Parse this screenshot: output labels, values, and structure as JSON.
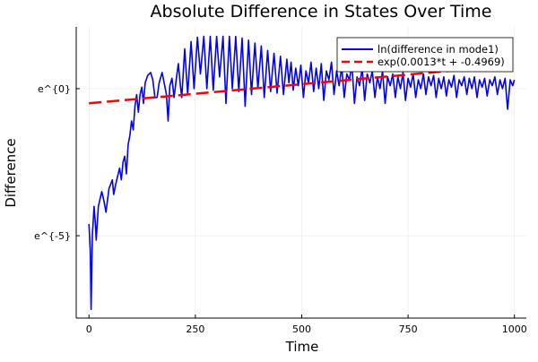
{
  "chart_data": {
    "type": "line",
    "title": "Absolute Difference in States Over Time",
    "xlabel": "Time",
    "ylabel": "Difference",
    "xlim": [
      -30,
      1028
    ],
    "ylim": [
      -7.8,
      2.1
    ],
    "y_scale": "log (natural, ticks shown as e^{k})",
    "grid": true,
    "legend_position": "top-right",
    "x_ticks": [
      {
        "value": 0,
        "label": "0"
      },
      {
        "value": 250,
        "label": "250"
      },
      {
        "value": 500,
        "label": "500"
      },
      {
        "value": 750,
        "label": "750"
      },
      {
        "value": 1000,
        "label": "1000"
      }
    ],
    "y_ticks": [
      {
        "value": 0,
        "label": "e^{0}"
      },
      {
        "value": -5,
        "label": "e^{-5}"
      }
    ],
    "series": [
      {
        "name": "ln(difference in mode1)",
        "color": "#0000ff",
        "style": "solid",
        "points": [
          [
            0,
            -4.6
          ],
          [
            3,
            -5.5
          ],
          [
            5,
            -7.5
          ],
          [
            8,
            -5.0
          ],
          [
            12,
            -4.0
          ],
          [
            15,
            -4.6
          ],
          [
            17,
            -5.15
          ],
          [
            22,
            -4.0
          ],
          [
            30,
            -3.5
          ],
          [
            35,
            -3.8
          ],
          [
            40,
            -4.2
          ],
          [
            47,
            -3.4
          ],
          [
            55,
            -3.1
          ],
          [
            58,
            -3.6
          ],
          [
            62,
            -3.3
          ],
          [
            67,
            -3.0
          ],
          [
            72,
            -2.7
          ],
          [
            76,
            -3.1
          ],
          [
            80,
            -2.5
          ],
          [
            84,
            -2.3
          ],
          [
            88,
            -2.9
          ],
          [
            92,
            -1.9
          ],
          [
            96,
            -1.6
          ],
          [
            100,
            -1.1
          ],
          [
            104,
            -1.4
          ],
          [
            108,
            -0.6
          ],
          [
            112,
            -0.2
          ],
          [
            116,
            -0.8
          ],
          [
            120,
            -0.2
          ],
          [
            124,
            0.05
          ],
          [
            128,
            -0.5
          ],
          [
            132,
            0.2
          ],
          [
            138,
            0.45
          ],
          [
            145,
            0.55
          ],
          [
            150,
            0.3
          ],
          [
            155,
            -0.3
          ],
          [
            160,
            -0.3
          ],
          [
            165,
            0.2
          ],
          [
            172,
            0.55
          ],
          [
            178,
            0.1
          ],
          [
            182,
            -0.2
          ],
          [
            186,
            -1.1
          ],
          [
            190,
            0.1
          ],
          [
            195,
            0.35
          ],
          [
            200,
            -0.3
          ],
          [
            205,
            0.3
          ],
          [
            210,
            0.85
          ],
          [
            215,
            0.1
          ],
          [
            218,
            -0.3
          ],
          [
            225,
            1.35
          ],
          [
            232,
            -0.2
          ],
          [
            240,
            1.6
          ],
          [
            247,
            0.0
          ],
          [
            255,
            1.75
          ],
          [
            262,
            0.5
          ],
          [
            270,
            1.78
          ],
          [
            277,
            0.0
          ],
          [
            285,
            1.78
          ],
          [
            292,
            -0.05
          ],
          [
            300,
            1.78
          ],
          [
            307,
            0.4
          ],
          [
            315,
            1.78
          ],
          [
            322,
            -0.5
          ],
          [
            330,
            1.78
          ],
          [
            337,
            0.0
          ],
          [
            345,
            1.77
          ],
          [
            352,
            -0.1
          ],
          [
            360,
            1.72
          ],
          [
            367,
            -0.6
          ],
          [
            375,
            1.65
          ],
          [
            382,
            -0.2
          ],
          [
            390,
            1.55
          ],
          [
            397,
            0.0
          ],
          [
            405,
            1.45
          ],
          [
            412,
            -0.3
          ],
          [
            420,
            1.3
          ],
          [
            427,
            -0.1
          ],
          [
            435,
            1.2
          ],
          [
            442,
            -0.15
          ],
          [
            450,
            1.1
          ],
          [
            457,
            -0.2
          ],
          [
            465,
            1.0
          ],
          [
            470,
            0.2
          ],
          [
            475,
            0.9
          ],
          [
            480,
            -0.05
          ],
          [
            486,
            0.7
          ],
          [
            492,
            0.1
          ],
          [
            498,
            0.8
          ],
          [
            504,
            -0.3
          ],
          [
            510,
            0.6
          ],
          [
            516,
            0.2
          ],
          [
            522,
            0.9
          ],
          [
            528,
            -0.1
          ],
          [
            534,
            0.7
          ],
          [
            540,
            0.0
          ],
          [
            546,
            0.85
          ],
          [
            552,
            -0.4
          ],
          [
            558,
            0.6
          ],
          [
            564,
            0.3
          ],
          [
            570,
            0.9
          ],
          [
            576,
            -0.2
          ],
          [
            582,
            0.6
          ],
          [
            588,
            0.1
          ],
          [
            594,
            0.75
          ],
          [
            600,
            -0.3
          ],
          [
            606,
            0.5
          ],
          [
            612,
            0.3
          ],
          [
            618,
            0.8
          ],
          [
            624,
            -0.5
          ],
          [
            630,
            0.4
          ],
          [
            636,
            0.1
          ],
          [
            642,
            0.7
          ],
          [
            648,
            -0.4
          ],
          [
            654,
            0.5
          ],
          [
            660,
            0.2
          ],
          [
            666,
            0.6
          ],
          [
            672,
            -0.3
          ],
          [
            678,
            0.4
          ],
          [
            684,
            0.0
          ],
          [
            690,
            0.6
          ],
          [
            696,
            -0.5
          ],
          [
            702,
            0.4
          ],
          [
            708,
            0.1
          ],
          [
            714,
            0.5
          ],
          [
            720,
            -0.3
          ],
          [
            726,
            0.4
          ],
          [
            732,
            0.0
          ],
          [
            738,
            0.55
          ],
          [
            744,
            -0.4
          ],
          [
            750,
            0.35
          ],
          [
            756,
            0.05
          ],
          [
            762,
            0.5
          ],
          [
            768,
            -0.3
          ],
          [
            774,
            0.3
          ],
          [
            780,
            0.0
          ],
          [
            786,
            0.5
          ],
          [
            792,
            -0.2
          ],
          [
            798,
            0.4
          ],
          [
            804,
            0.1
          ],
          [
            810,
            0.45
          ],
          [
            816,
            -0.3
          ],
          [
            822,
            0.35
          ],
          [
            828,
            0.0
          ],
          [
            834,
            0.4
          ],
          [
            840,
            -0.25
          ],
          [
            846,
            0.3
          ],
          [
            852,
            0.05
          ],
          [
            858,
            0.45
          ],
          [
            864,
            -0.3
          ],
          [
            870,
            0.3
          ],
          [
            876,
            0.1
          ],
          [
            882,
            0.4
          ],
          [
            888,
            -0.2
          ],
          [
            894,
            0.35
          ],
          [
            900,
            0.0
          ],
          [
            906,
            0.4
          ],
          [
            912,
            -0.3
          ],
          [
            918,
            0.3
          ],
          [
            924,
            0.05
          ],
          [
            930,
            0.35
          ],
          [
            936,
            -0.25
          ],
          [
            942,
            0.3
          ],
          [
            948,
            0.1
          ],
          [
            954,
            0.4
          ],
          [
            960,
            -0.2
          ],
          [
            966,
            0.3
          ],
          [
            972,
            0.0
          ],
          [
            978,
            0.35
          ],
          [
            984,
            -0.7
          ],
          [
            990,
            0.3
          ],
          [
            996,
            0.1
          ],
          [
            1000,
            0.3
          ]
        ]
      },
      {
        "name": "exp(0.0013*t + -0.4969)",
        "color": "#ff0000",
        "style": "dashed",
        "slope": 0.0013,
        "intercept": -0.4969,
        "points": [
          [
            0,
            -0.4969
          ],
          [
            1000,
            0.8031
          ]
        ]
      }
    ]
  }
}
